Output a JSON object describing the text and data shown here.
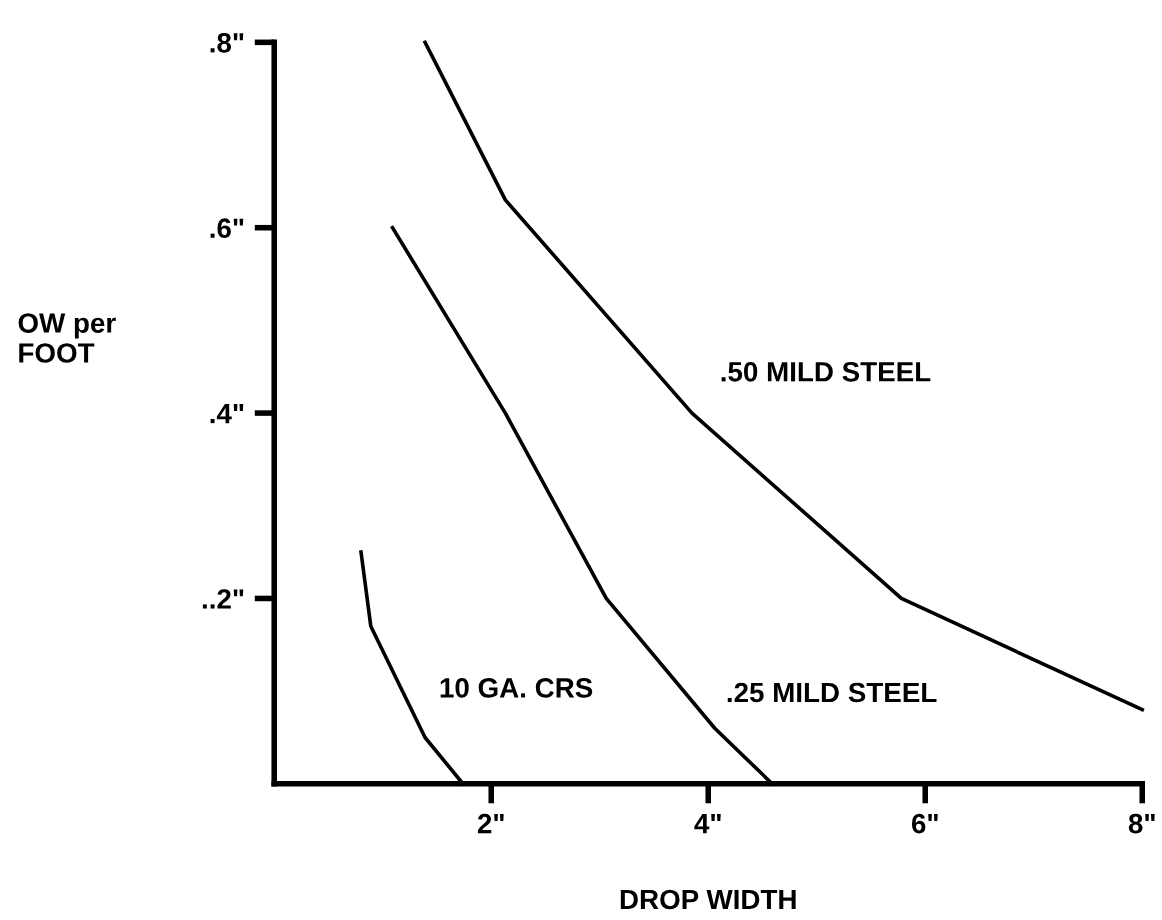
{
  "chart_data": {
    "type": "line",
    "xlabel": "DROP WIDTH",
    "ylabel": "OW per\nFOOT",
    "xlim": [
      0,
      8
    ],
    "ylim": [
      0,
      0.8
    ],
    "xticks": [
      {
        "value": 2,
        "label": "2\""
      },
      {
        "value": 4,
        "label": "4\""
      },
      {
        "value": 6,
        "label": "6\""
      },
      {
        "value": 8,
        "label": "8\""
      }
    ],
    "yticks": [
      {
        "value": 0.2,
        "label": "..2\""
      },
      {
        "value": 0.4,
        "label": ".4\""
      },
      {
        "value": 0.6,
        "label": ".6\""
      },
      {
        "value": 0.8,
        "label": ".8\""
      }
    ],
    "series": [
      {
        "name": "10 GA. CRS",
        "color": "#000000",
        "x": [
          0.8,
          0.89,
          1.39,
          1.74
        ],
        "values": [
          0.25,
          0.17,
          0.05,
          0
        ]
      },
      {
        "name": ".25 MILD STEEL",
        "color": "#000000",
        "x": [
          1.09,
          2.13,
          3.06,
          4.06,
          4.59
        ],
        "values": [
          0.6,
          0.4,
          0.2,
          0.06,
          0
        ]
      },
      {
        "name": ".50 MILD STEEL",
        "color": "#000000",
        "x": [
          1.39,
          2.13,
          3.85,
          5.78,
          8.0
        ],
        "values": [
          0.8,
          0.63,
          0.4,
          0.2,
          0.08
        ]
      }
    ],
    "grid": false,
    "legend": false,
    "marker": "none",
    "line_style": "solid"
  }
}
